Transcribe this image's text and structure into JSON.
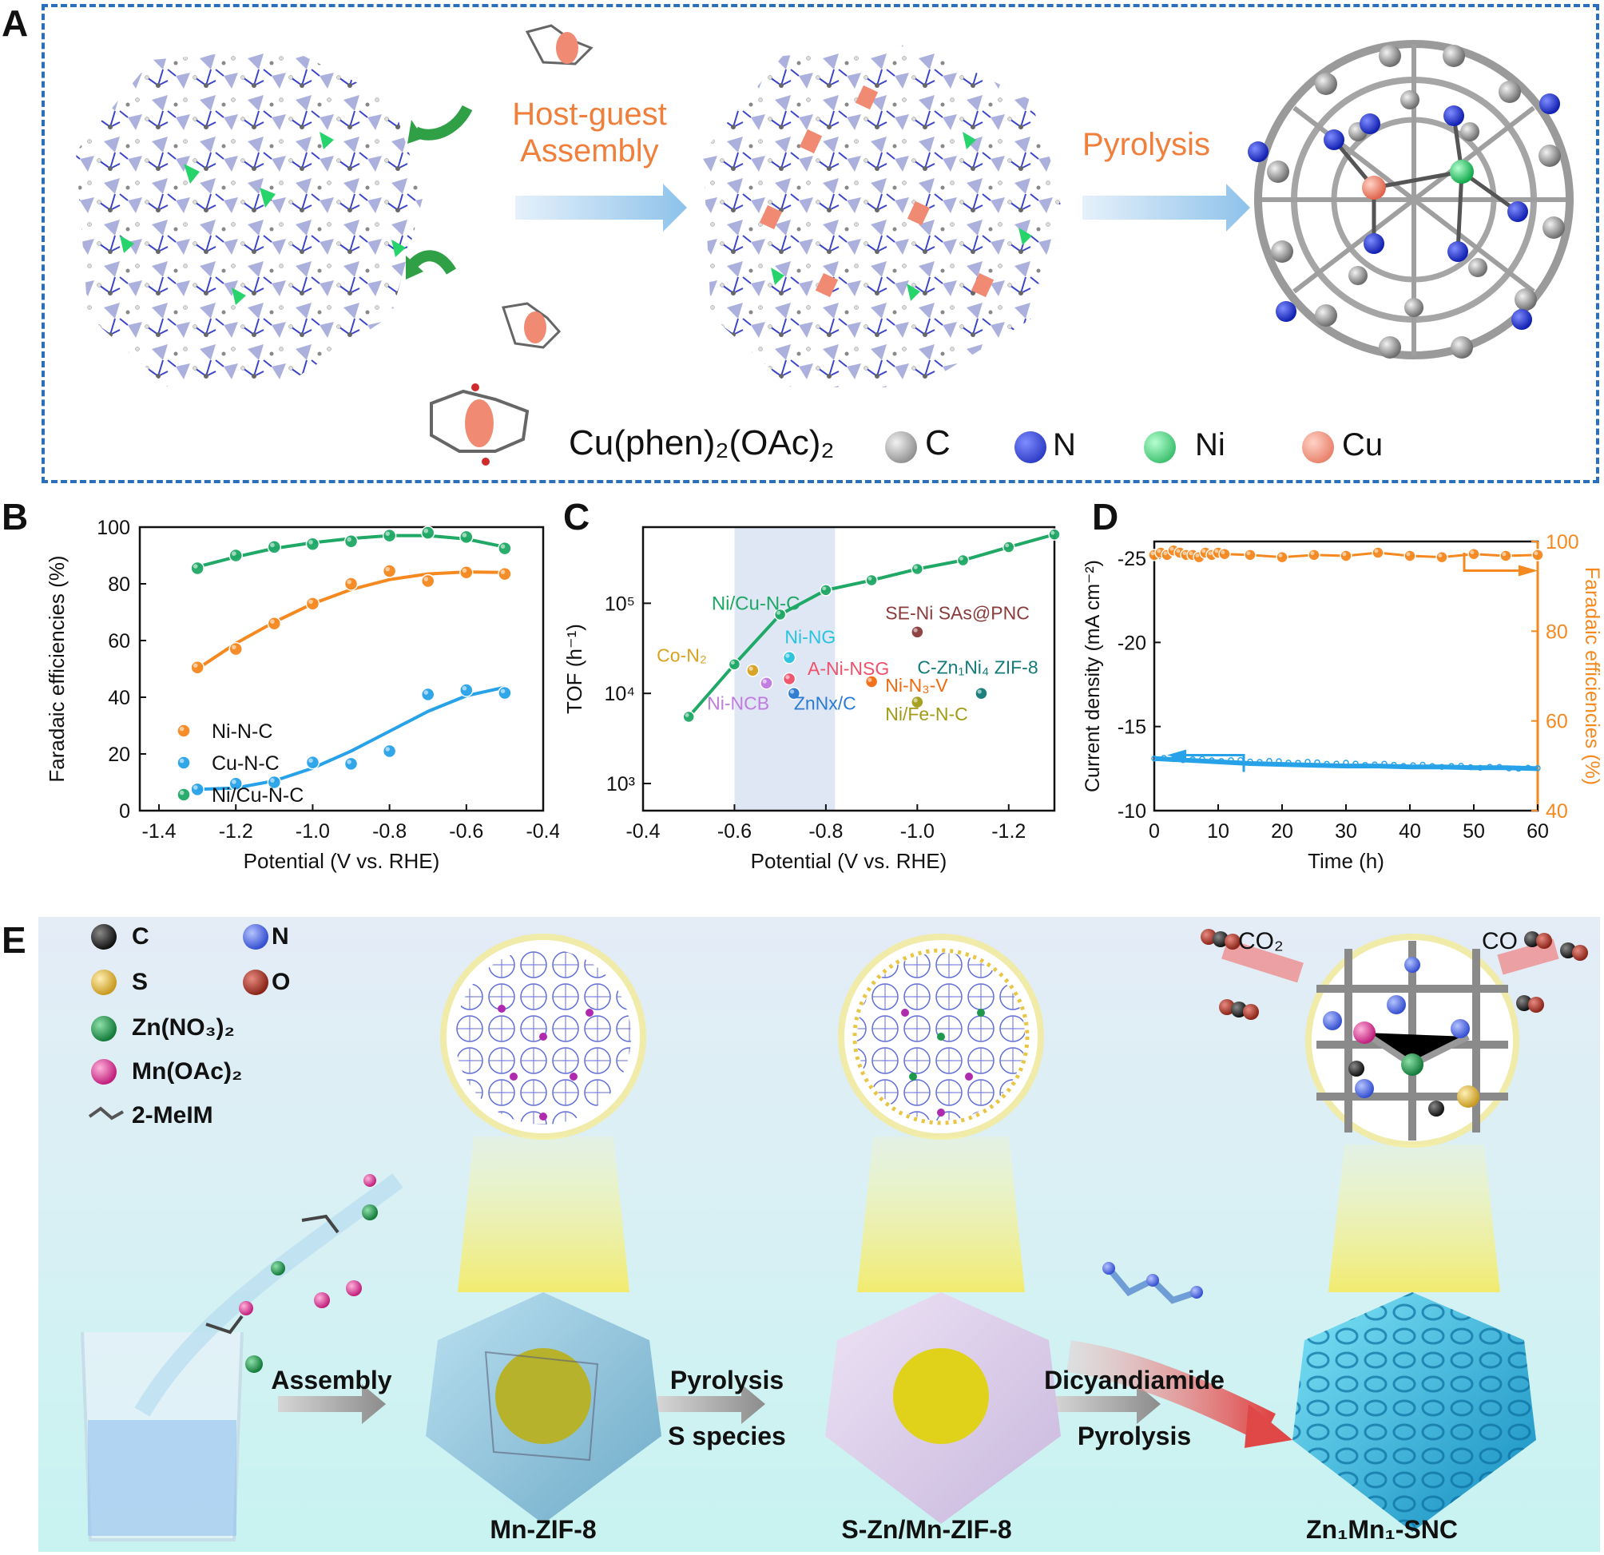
{
  "panel_labels": {
    "a": "A",
    "b": "B",
    "c": "C",
    "d": "D",
    "e": "E"
  },
  "panel_a": {
    "step1": "Host-guest\nAssembly",
    "step2": "Pyrolysis",
    "guest_formula": "Cu(phen)₂(OAc)₂",
    "legend": [
      {
        "label": "C",
        "color": "#8c8c8c"
      },
      {
        "label": "N",
        "color": "#1f2fd6"
      },
      {
        "label": "Ni",
        "color": "#27d36b"
      },
      {
        "label": "Cu",
        "color": "#f08a73"
      }
    ]
  },
  "chart_data": [
    {
      "id": "B",
      "type": "scatter",
      "xlabel": "Potential (V vs. RHE)",
      "ylabel": "Faradaic efficiencies (%)",
      "xlim": [
        -1.45,
        -0.4
      ],
      "ylim": [
        0,
        100
      ],
      "x_ticks": [
        "-1.4",
        "-1.2",
        "-1.0",
        "-0.8",
        "-0.6",
        "-0.4"
      ],
      "y_ticks": [
        "0",
        "20",
        "40",
        "60",
        "80",
        "100"
      ],
      "legend_position": "center-left",
      "series": [
        {
          "name": "Ni-N-C",
          "color": "#f5891f",
          "x": [
            -1.3,
            -1.2,
            -1.1,
            -1.0,
            -0.9,
            -0.8,
            -0.7,
            -0.6,
            -0.5
          ],
          "y": [
            50.5,
            57,
            66,
            73,
            80,
            84.5,
            81,
            84,
            83.5
          ],
          "fit": [
            [
              -1.3,
              50
            ],
            [
              -1.2,
              59
            ],
            [
              -1.1,
              66.5
            ],
            [
              -1.0,
              73
            ],
            [
              -0.9,
              78
            ],
            [
              -0.8,
              81.5
            ],
            [
              -0.7,
              83.5
            ],
            [
              -0.6,
              84.2
            ],
            [
              -0.5,
              84
            ]
          ]
        },
        {
          "name": "Cu-N-C",
          "color": "#27a2e8",
          "x": [
            -1.3,
            -1.2,
            -1.1,
            -1.0,
            -0.9,
            -0.8,
            -0.7,
            -0.6,
            -0.5
          ],
          "y": [
            7.5,
            9.5,
            10,
            17,
            16.5,
            21,
            41,
            42.5,
            41.5
          ],
          "fit": [
            [
              -1.3,
              7.5
            ],
            [
              -1.2,
              8
            ],
            [
              -1.1,
              10.5
            ],
            [
              -1.0,
              15
            ],
            [
              -0.9,
              21
            ],
            [
              -0.8,
              28
            ],
            [
              -0.7,
              35
            ],
            [
              -0.6,
              40.5
            ],
            [
              -0.5,
              43.5
            ]
          ]
        },
        {
          "name": "Ni/Cu-N-C",
          "color": "#1fa866",
          "x": [
            -1.3,
            -1.2,
            -1.1,
            -1.0,
            -0.9,
            -0.8,
            -0.7,
            -0.6,
            -0.5
          ],
          "y": [
            85.5,
            90,
            93,
            94,
            95,
            97,
            98,
            96.5,
            92.5
          ],
          "fit": [
            [
              -1.3,
              86
            ],
            [
              -1.2,
              89.5
            ],
            [
              -1.1,
              92.5
            ],
            [
              -1.0,
              94.5
            ],
            [
              -0.9,
              96
            ],
            [
              -0.8,
              97
            ],
            [
              -0.7,
              97
            ],
            [
              -0.6,
              95.8
            ],
            [
              -0.5,
              93
            ]
          ]
        }
      ]
    },
    {
      "id": "C",
      "type": "scatter",
      "xlabel": "Potential (V vs. RHE)",
      "ylabel": "TOF (h⁻¹)",
      "yscale": "log",
      "xlim": [
        -0.4,
        -1.3
      ],
      "ylim": [
        500,
        700000
      ],
      "x_ticks": [
        "-0.4",
        "-0.6",
        "-0.8",
        "-1.0",
        "-1.2"
      ],
      "y_ticks": [
        "10³",
        "10⁴",
        "10⁵"
      ],
      "shaded_x": [
        -0.6,
        -0.82
      ],
      "main_series": {
        "name": "Ni/Cu-N-C",
        "color": "#1fa866",
        "x": [
          -0.5,
          -0.6,
          -0.7,
          -0.8,
          -0.9,
          -1.0,
          -1.1,
          -1.2,
          -1.3
        ],
        "y": [
          5500,
          21000,
          75000,
          140000,
          180000,
          240000,
          300000,
          420000,
          580000
        ]
      },
      "references": [
        {
          "name": "Co-N₂",
          "x": -0.64,
          "y": 18000,
          "color": "#d9a21f"
        },
        {
          "name": "Ni-NG",
          "x": -0.72,
          "y": 25000,
          "color": "#27c3df"
        },
        {
          "name": "Ni-NCB",
          "x": -0.67,
          "y": 13000,
          "color": "#c07be0"
        },
        {
          "name": "A-Ni-NSG",
          "x": -0.72,
          "y": 14500,
          "color": "#f0506a"
        },
        {
          "name": "ZnNx/C",
          "x": -0.73,
          "y": 10000,
          "color": "#2a7bd1"
        },
        {
          "name": "SE-Ni SAs@PNC",
          "x": -1.0,
          "y": 48000,
          "color": "#8b3a3a"
        },
        {
          "name": "Ni-N₃-V",
          "x": -0.9,
          "y": 13500,
          "color": "#f26a0f"
        },
        {
          "name": "Ni/Fe-N-C",
          "x": -1.0,
          "y": 8000,
          "color": "#a39b15"
        },
        {
          "name": "C-Zn₁Ni₄ ZIF-8",
          "x": -1.14,
          "y": 10000,
          "color": "#127a78"
        }
      ]
    },
    {
      "id": "D",
      "type": "line",
      "xlabel": "Time (h)",
      "ylabel_left": "Current density (mA cm⁻²)",
      "ylabel_right": "Faradaic efficiencies (%)",
      "xlim": [
        0,
        60
      ],
      "ylim_left": [
        -10,
        -26
      ],
      "ylim_right": [
        40,
        100
      ],
      "x_ticks": [
        "0",
        "10",
        "20",
        "30",
        "40",
        "50",
        "60"
      ],
      "y_left_ticks": [
        "-10",
        "-15",
        "-20",
        "-25"
      ],
      "y_right_ticks": [
        "40",
        "60",
        "80",
        "100"
      ],
      "series": [
        {
          "name": "Faradaic efficiencies",
          "axis": "right",
          "color": "#f5891f",
          "x": [
            0,
            1,
            2,
            3,
            4,
            5,
            6,
            7,
            8,
            9,
            10,
            11,
            15,
            20,
            25,
            30,
            35,
            40,
            45,
            50,
            55,
            60
          ],
          "y": [
            97,
            97.5,
            97,
            98,
            97.5,
            97,
            97,
            96.5,
            97.5,
            97,
            97.5,
            97.2,
            97,
            96.5,
            97,
            96.8,
            97.5,
            96.8,
            96.5,
            97.2,
            96.8,
            97
          ]
        },
        {
          "name": "Current density",
          "axis": "left",
          "color": "#27a2e8",
          "x": [
            0,
            5,
            10,
            15,
            20,
            25,
            30,
            35,
            40,
            45,
            50,
            55,
            60
          ],
          "y": [
            -13.1,
            -13.0,
            -12.9,
            -12.8,
            -12.75,
            -12.7,
            -12.65,
            -12.65,
            -12.6,
            -12.6,
            -12.55,
            -12.55,
            -12.5
          ]
        }
      ]
    }
  ],
  "panel_e": {
    "legend": [
      {
        "label": "C",
        "color": "#333333"
      },
      {
        "label": "N",
        "color": "#5e79ea"
      },
      {
        "label": "S",
        "color": "#e7c24a"
      },
      {
        "label": "O",
        "color": "#b5402f"
      },
      {
        "label": "Zn(NO₃)₂",
        "color": "#1f9a4d"
      },
      {
        "label": "Mn(OAc)₂",
        "color": "#e0409a"
      },
      {
        "label": "2-MeIM",
        "color": "#555555"
      }
    ],
    "arrow1": "Assembly",
    "arrow2_top": "Pyrolysis",
    "arrow2_bottom": "S species",
    "arrow3_top": "Dicyandiamide",
    "arrow3_bottom": "Pyrolysis",
    "product1": "Mn-ZIF-8",
    "product2": "S-Zn/Mn-ZIF-8",
    "product3": "Zn₁Mn₁-SNC",
    "co2": "CO₂",
    "co": "CO"
  }
}
